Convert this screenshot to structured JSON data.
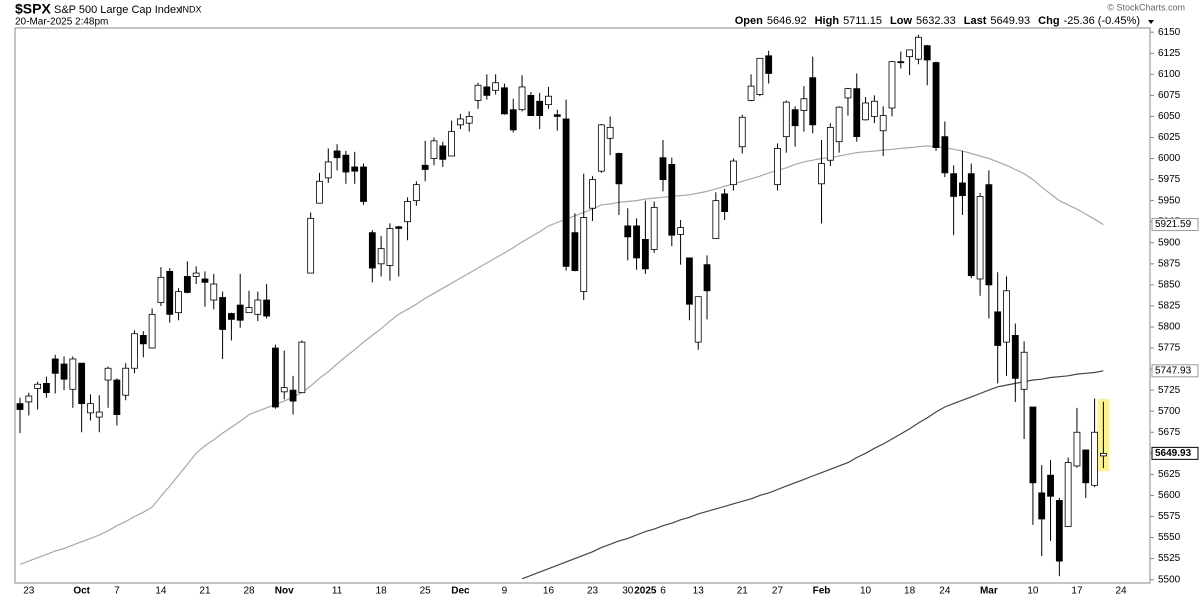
{
  "chart_data": {
    "type": "candlestick",
    "title": "$SPX",
    "subtitle": "S&P 500 Large Cap Index",
    "exchange": "INDX",
    "date": "20-Mar-2025 2:48pm",
    "credit": "© StockCharts.com",
    "stats": [
      {
        "label": "Open",
        "value": 5646.92
      },
      {
        "label": "High",
        "value": 5711.15
      },
      {
        "label": "Low",
        "value": 5632.33
      },
      {
        "label": "Last",
        "value": 5649.93
      },
      {
        "label": "Chg",
        "value": "-25.36 (-0.45%)"
      }
    ],
    "categories": [
      null,
      "23",
      null,
      null,
      null,
      null,
      null,
      "Oct",
      null,
      null,
      null,
      "7",
      null,
      null,
      null,
      null,
      "14",
      null,
      null,
      null,
      null,
      "21",
      null,
      null,
      null,
      null,
      "28",
      null,
      null,
      null,
      "Nov",
      null,
      null,
      null,
      null,
      null,
      "11",
      null,
      null,
      null,
      null,
      "18",
      null,
      null,
      null,
      null,
      "25",
      null,
      null,
      null,
      "Dec",
      null,
      null,
      null,
      null,
      "9",
      null,
      null,
      null,
      null,
      "16",
      null,
      null,
      null,
      null,
      "23",
      null,
      null,
      null,
      "30",
      null,
      "2025",
      null,
      "6",
      null,
      null,
      null,
      "13",
      null,
      null,
      null,
      null,
      "21",
      null,
      null,
      null,
      "27",
      null,
      null,
      null,
      null,
      "Feb",
      null,
      null,
      null,
      null,
      "10",
      null,
      null,
      null,
      null,
      "18",
      null,
      null,
      null,
      "24",
      null,
      null,
      null,
      null,
      "Mar",
      null,
      null,
      null,
      null,
      "10",
      null,
      null,
      null,
      null,
      "17",
      null,
      null,
      null,
      null,
      "24"
    ],
    "open": [
      5709,
      5711,
      5727,
      5733,
      5762,
      5756,
      5726,
      5757,
      5698,
      5693,
      5737,
      5737,
      5719,
      5751,
      5790,
      5775,
      5829,
      5866,
      5817,
      5860,
      5860,
      5857,
      5832,
      5835,
      5816,
      5826,
      5817,
      5815,
      5832,
      5775,
      5723,
      5725,
      5722,
      5864,
      5947,
      5977,
      6009,
      6004,
      5990,
      5990,
      5912,
      5875,
      5873,
      5919,
      5925,
      5950,
      5992,
      6000,
      6015,
      6003,
      6040,
      6042,
      6069,
      6085,
      6081,
      6084,
      6058,
      6058,
      6075,
      6068,
      6064,
      6052,
      6047,
      5912,
      5842,
      5941,
      5985,
      6024,
      6006,
      5920,
      5920,
      5904,
      5892,
      6001,
      5993,
      5910,
      5882,
      5782,
      5874,
      5905,
      5958,
      5969,
      6014,
      6069,
      6076,
      6122,
      5969,
      6026,
      6058,
      6057,
      6096,
      5970,
      5998,
      6020,
      6072,
      6083,
      6046,
      6050,
      6033,
      6060,
      6115,
      6121,
      6118,
      6134,
      6114,
      6026,
      5982,
      5971,
      5982,
      5857,
      5969,
      5818,
      5782,
      5790,
      5726,
      5705,
      5603,
      5624,
      5594,
      5563,
      5635,
      5654,
      5612,
      5646.92,
      null,
      null
    ],
    "high": [
      5716,
      5722,
      5735,
      5741,
      5767,
      5765,
      5765,
      5757,
      5720,
      5719,
      5753,
      5739,
      5757,
      5796,
      5795,
      5822,
      5871,
      5870,
      5846,
      5878,
      5872,
      5866,
      5863,
      5842,
      5817,
      5863,
      5843,
      5842,
      5851,
      5779,
      5772,
      5742,
      5784,
      5936,
      5983,
      6012,
      6017,
      6009,
      6008,
      5994,
      5915,
      5908,
      5923,
      5920,
      5954,
      5973,
      6021,
      6025,
      6020,
      6045,
      6053,
      6056,
      6090,
      6100,
      6100,
      6089,
      6071,
      6099,
      6079,
      6078,
      6085,
      6058,
      6070,
      5935,
      5982,
      5979,
      6041,
      6050,
      6007,
      5941,
      5929,
      5950,
      5949,
      6022,
      6001,
      5927,
      5882,
      5836,
      5885,
      5960,
      5964,
      6000,
      6052,
      6100,
      6118,
      6128,
      6018,
      6069,
      6062,
      6086,
      6121,
      6022,
      6042,
      6062,
      6084,
      6101,
      6073,
      6075,
      6062,
      6116,
      6127,
      6129,
      6147,
      6135,
      6115,
      6044,
      5992,
      6009,
      5994,
      5959,
      5986,
      5865,
      5860,
      5804,
      5783,
      5705,
      5636,
      5642,
      5597,
      5645,
      5704,
      5654,
      5715,
      5711.15,
      null,
      null
    ],
    "low": [
      5674,
      5695,
      5702,
      5716,
      5721,
      5725,
      5704,
      5675,
      5689,
      5675,
      5704,
      5683,
      5713,
      5745,
      5764,
      5775,
      5825,
      5805,
      5808,
      5840,
      5851,
      5824,
      5821,
      5762,
      5784,
      5799,
      5817,
      5807,
      5810,
      5703,
      5714,
      5696,
      5722,
      5864,
      5947,
      5971,
      5986,
      5970,
      5970,
      5945,
      5853,
      5860,
      5855,
      5860,
      5903,
      5944,
      5973,
      5992,
      5990,
      6003,
      6035,
      6032,
      6059,
      6070,
      6076,
      6052,
      6031,
      6056,
      6051,
      6035,
      6059,
      6033,
      5867,
      5866,
      5832,
      5926,
      5983,
      6004,
      5933,
      5879,
      5868,
      5863,
      5888,
      5961,
      5896,
      5874,
      5808,
      5773,
      5809,
      5905,
      5927,
      5962,
      6006,
      6068,
      6074,
      6089,
      5962,
      6007,
      6014,
      6032,
      6030,
      5923,
      5991,
      6007,
      6051,
      6020,
      6045,
      6042,
      6003,
      6050,
      6107,
      6099,
      6112,
      6087,
      6009,
      5978,
      5909,
      5933,
      5858,
      5837,
      5810,
      5733,
      5742,
      5711,
      5667,
      5565,
      5528,
      5546,
      5504,
      5563,
      5633,
      5597,
      5610,
      5632.33,
      null,
      null
    ],
    "close": [
      5702,
      5718,
      5732,
      5722,
      5745,
      5738,
      5762,
      5709,
      5709,
      5699,
      5751,
      5696,
      5751,
      5792,
      5780,
      5815,
      5859,
      5815,
      5842,
      5841,
      5864,
      5853,
      5851,
      5797,
      5809,
      5808,
      5823,
      5832,
      5813,
      5705,
      5728,
      5712,
      5782,
      5929,
      5973,
      5996,
      6001,
      5984,
      5985,
      5949,
      5870,
      5893,
      5917,
      5917,
      5949,
      5969,
      5987,
      6021,
      5999,
      6032,
      6047,
      6050,
      6087,
      6075,
      6090,
      6053,
      6034,
      6085,
      6051,
      6051,
      6074,
      6050,
      5872,
      5867,
      5930,
      5975,
      6040,
      6037,
      5970,
      5907,
      5882,
      5869,
      5942,
      5975,
      5909,
      5918,
      5827,
      5836,
      5843,
      5950,
      5937,
      5997,
      6049,
      6086,
      6119,
      6101,
      6012,
      6067,
      6039,
      6071,
      6040,
      5994,
      6037,
      6061,
      6083,
      6026,
      6066,
      6068,
      6051,
      6115,
      6114,
      6129,
      6144,
      6117,
      6013,
      5983,
      5955,
      5956,
      5861,
      5955,
      5850,
      5778,
      5843,
      5739,
      5770,
      5615,
      5572,
      5599,
      5522,
      5639,
      5675,
      5615,
      5675,
      5649.93,
      null,
      null
    ],
    "lines": [
      {
        "color": "#a8a8a8",
        "values": [
          5518,
          5522,
          5526,
          5530,
          5534,
          5537,
          5541,
          5545,
          5549,
          5553,
          5558,
          5564,
          5569,
          5575,
          5580,
          5586,
          5599,
          5611,
          5624,
          5637,
          5650,
          5659,
          5666,
          5674,
          5681,
          5688,
          5696,
          5700,
          5704,
          5708,
          5712,
          5717,
          5722,
          5730,
          5739,
          5747,
          5756,
          5765,
          5773,
          5782,
          5790,
          5798,
          5807,
          5815,
          5821,
          5827,
          5834,
          5840,
          5846,
          5852,
          5858,
          5864,
          5870,
          5876,
          5882,
          5888,
          5894,
          5901,
          5907,
          5913,
          5920,
          5924,
          5928,
          5932,
          5936,
          5940,
          5945,
          5946,
          5948,
          5949,
          5950,
          5952,
          5953,
          5954,
          5955,
          5956,
          5957,
          5959,
          5961,
          5964,
          5967,
          5970,
          5973,
          5976,
          5979,
          5983,
          5986,
          5989,
          5993,
          5996,
          5998,
          6000,
          6001,
          6003,
          6005,
          6007,
          6008,
          6009,
          6010,
          6011,
          6012,
          6013,
          6014,
          6015,
          6014,
          6013,
          6011,
          6009,
          6006,
          6003,
          6000,
          5996,
          5992,
          5987,
          5982,
          5975,
          5966,
          5958,
          5950,
          5945,
          5940,
          5934,
          5928,
          5921.59,
          null,
          null
        ]
      },
      {
        "color": "#444444",
        "values": [
          null,
          null,
          null,
          null,
          null,
          null,
          null,
          null,
          null,
          null,
          null,
          null,
          null,
          null,
          null,
          null,
          null,
          null,
          null,
          null,
          null,
          null,
          null,
          null,
          null,
          null,
          null,
          null,
          null,
          null,
          null,
          null,
          null,
          null,
          null,
          null,
          null,
          null,
          null,
          null,
          null,
          null,
          null,
          null,
          null,
          null,
          null,
          null,
          null,
          null,
          null,
          null,
          null,
          null,
          null,
          null,
          null,
          5501,
          5505,
          5509,
          5513,
          5517,
          5521,
          5525,
          5529,
          5533,
          5538,
          5542,
          5546,
          5549,
          5553,
          5557,
          5560,
          5564,
          5567,
          5571,
          5574,
          5578,
          5581,
          5584,
          5587,
          5590,
          5593,
          5596,
          5600,
          5603,
          5607,
          5611,
          5615,
          5619,
          5623,
          5627,
          5631,
          5635,
          5639,
          5645,
          5650,
          5656,
          5661,
          5667,
          5673,
          5679,
          5686,
          5692,
          5699,
          5705,
          5709,
          5713,
          5717,
          5721,
          5725,
          5729,
          5731,
          5733,
          5735,
          5737,
          5738,
          5740,
          5741,
          5742,
          5744,
          5745,
          5746,
          5747.93,
          null,
          null
        ]
      }
    ],
    "ylim": [
      5496,
      6155
    ],
    "yticks": [
      5500,
      5525,
      5550,
      5575,
      5600,
      5625,
      5650,
      5675,
      5700,
      5725,
      5750,
      5775,
      5800,
      5825,
      5850,
      5875,
      5900,
      5925,
      5950,
      5975,
      6000,
      6025,
      6050,
      6075,
      6100,
      6125,
      6150
    ],
    "grid": false
  }
}
